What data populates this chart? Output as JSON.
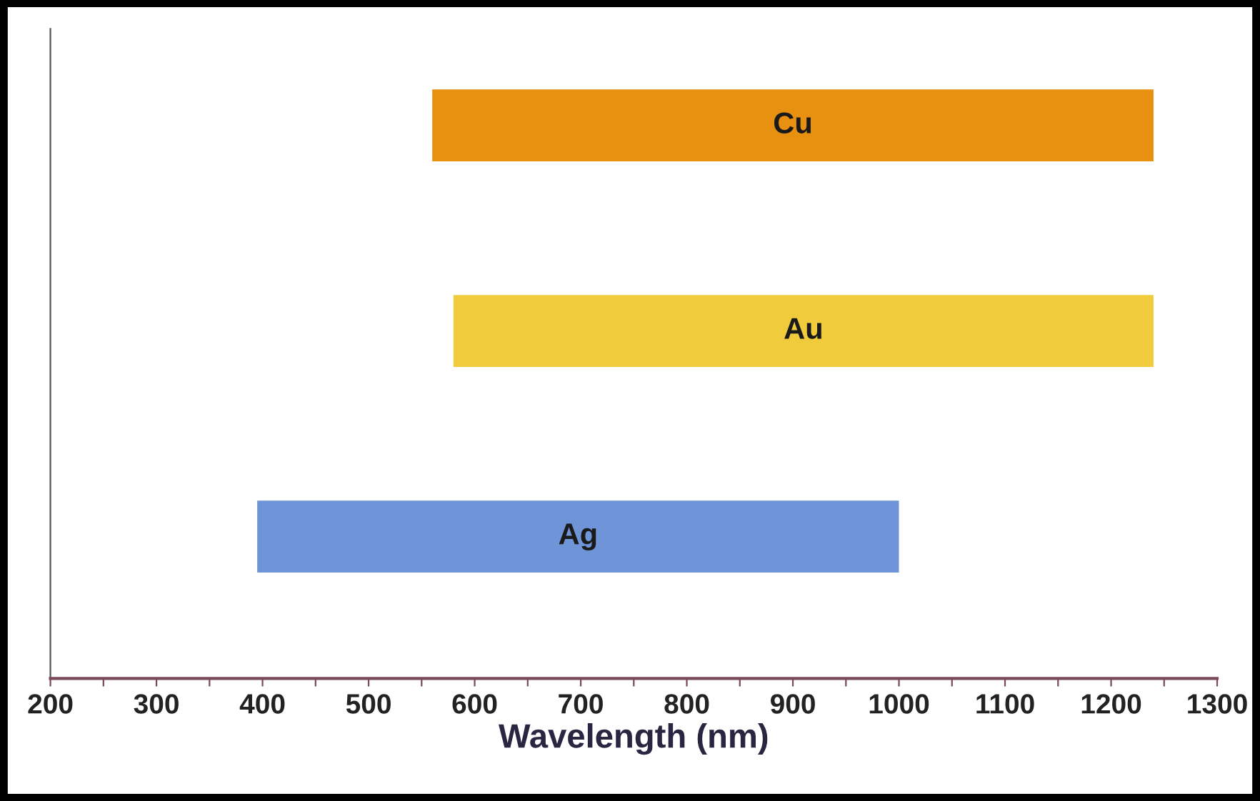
{
  "chart_data": {
    "type": "bar",
    "orientation": "horizontal",
    "xlabel": "Wavelength (nm)",
    "categories": [
      "Cu",
      "Au",
      "Ag"
    ],
    "base": [
      560,
      580,
      395
    ],
    "values": [
      680,
      660,
      605
    ],
    "colors": [
      "#e8900f",
      "#f0cc3c",
      "#6f95d8"
    ],
    "xlim": [
      200,
      1300
    ],
    "xticks": [
      200,
      {
        "value": 250,
        "label": null
      },
      300,
      {
        "value": 350,
        "label": null
      },
      400,
      {
        "value": 450,
        "label": null
      },
      500,
      {
        "value": 550,
        "label": null
      },
      600,
      {
        "value": 650,
        "label": null
      },
      700,
      {
        "value": 750,
        "label": null
      },
      800,
      {
        "value": 850,
        "label": null
      },
      900,
      {
        "value": 950,
        "label": null
      },
      1000,
      {
        "value": 1050,
        "label": null
      },
      1100,
      {
        "value": 1150,
        "label": null
      },
      1200,
      {
        "value": 1250,
        "label": null
      },
      1300
    ],
    "tick_labels": "x",
    "grid": false
  }
}
